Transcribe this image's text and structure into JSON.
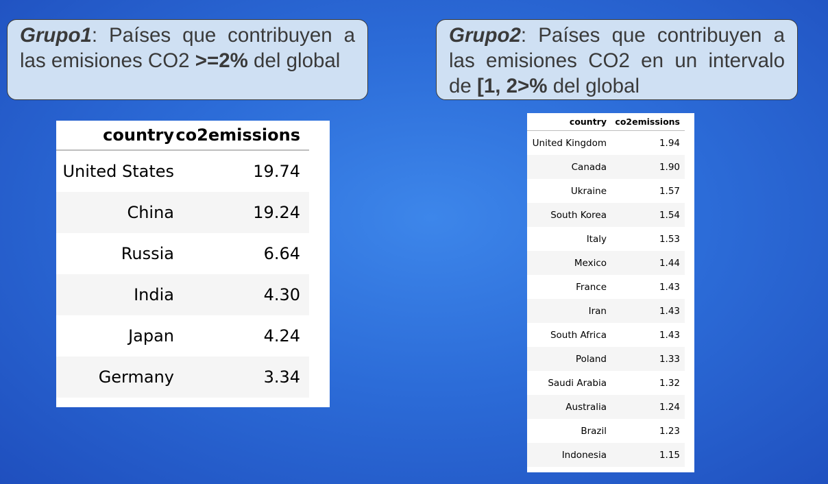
{
  "group1": {
    "callout": {
      "lead": "Grupo1",
      "text": ": Países que contribuyen a las emisiones CO2 ",
      "emph": ">=2%",
      "tail": " del global"
    },
    "table": {
      "headers": [
        "country",
        "co2emissions"
      ],
      "rows": [
        [
          "United States",
          "19.74"
        ],
        [
          "China",
          "19.24"
        ],
        [
          "Russia",
          "6.64"
        ],
        [
          "India",
          "4.30"
        ],
        [
          "Japan",
          "4.24"
        ],
        [
          "Germany",
          "3.34"
        ]
      ]
    }
  },
  "group2": {
    "callout": {
      "lead": "Grupo2",
      "text": ": Países que contribuyen a las emisiones CO2 en un intervalo de ",
      "emph": "[1, 2>%",
      "tail": " del global"
    },
    "table": {
      "headers": [
        "country",
        "co2emissions"
      ],
      "rows": [
        [
          "United Kingdom",
          "1.94"
        ],
        [
          "Canada",
          "1.90"
        ],
        [
          "Ukraine",
          "1.57"
        ],
        [
          "South Korea",
          "1.54"
        ],
        [
          "Italy",
          "1.53"
        ],
        [
          "Mexico",
          "1.44"
        ],
        [
          "France",
          "1.43"
        ],
        [
          "Iran",
          "1.43"
        ],
        [
          "South Africa",
          "1.43"
        ],
        [
          "Poland",
          "1.33"
        ],
        [
          "Saudi Arabia",
          "1.32"
        ],
        [
          "Australia",
          "1.24"
        ],
        [
          "Brazil",
          "1.23"
        ],
        [
          "Indonesia",
          "1.15"
        ]
      ]
    }
  }
}
